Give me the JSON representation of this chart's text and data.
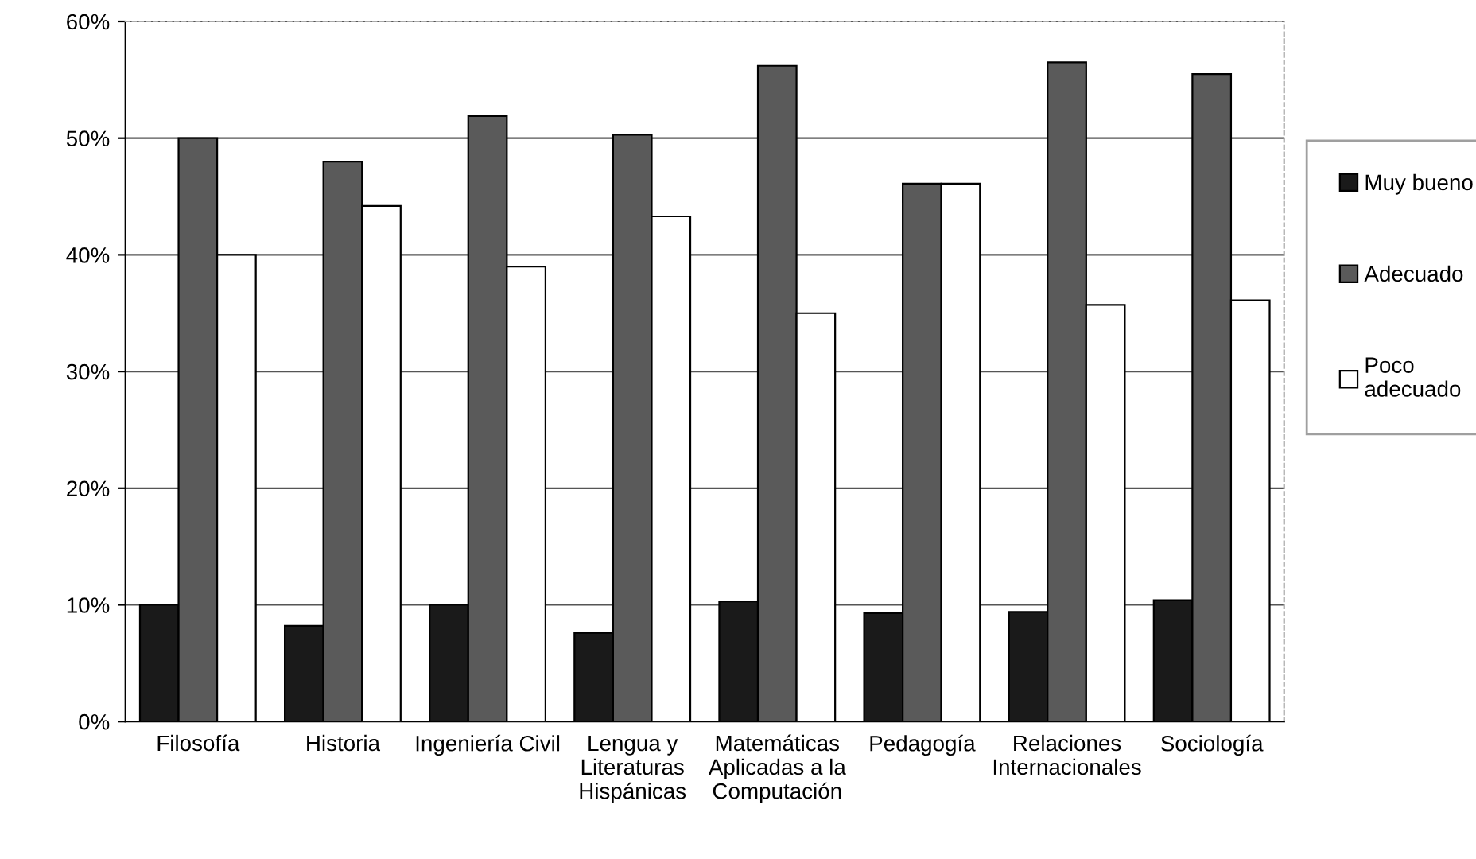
{
  "chart_data": {
    "type": "bar",
    "categories": [
      "Filosofía",
      "Historia",
      "Ingeniería Civil",
      "Lengua y\nLiteraturas\nHispánicas",
      "Matemáticas\nAplicadas a la\nComputación",
      "Pedagogía",
      "Relaciones\nInternacionales",
      "Sociología"
    ],
    "series": [
      {
        "name": "Muy bueno",
        "color": "#1a1a1a",
        "values": [
          10,
          8.2,
          10,
          7.6,
          10.3,
          9.3,
          9.4,
          10.4
        ]
      },
      {
        "name": "Adecuado",
        "color": "#5a5a5a",
        "values": [
          50,
          48,
          51.9,
          50.3,
          56.2,
          46.1,
          56.5,
          55.5
        ]
      },
      {
        "name": "Poco\nadecuado",
        "color": "#ffffff",
        "values": [
          40,
          44.2,
          39,
          43.3,
          35,
          46.1,
          35.7,
          36.1
        ]
      }
    ],
    "ylim": [
      0,
      60
    ],
    "yticks": [
      {
        "value": 0,
        "label": "0%"
      },
      {
        "value": 10,
        "label": "10%"
      },
      {
        "value": 20,
        "label": "20%"
      },
      {
        "value": 30,
        "label": "30%"
      },
      {
        "value": 40,
        "label": "40%"
      },
      {
        "value": 50,
        "label": "50%"
      },
      {
        "value": 60,
        "label": "60%"
      }
    ],
    "grid": "y",
    "legend": "right"
  }
}
